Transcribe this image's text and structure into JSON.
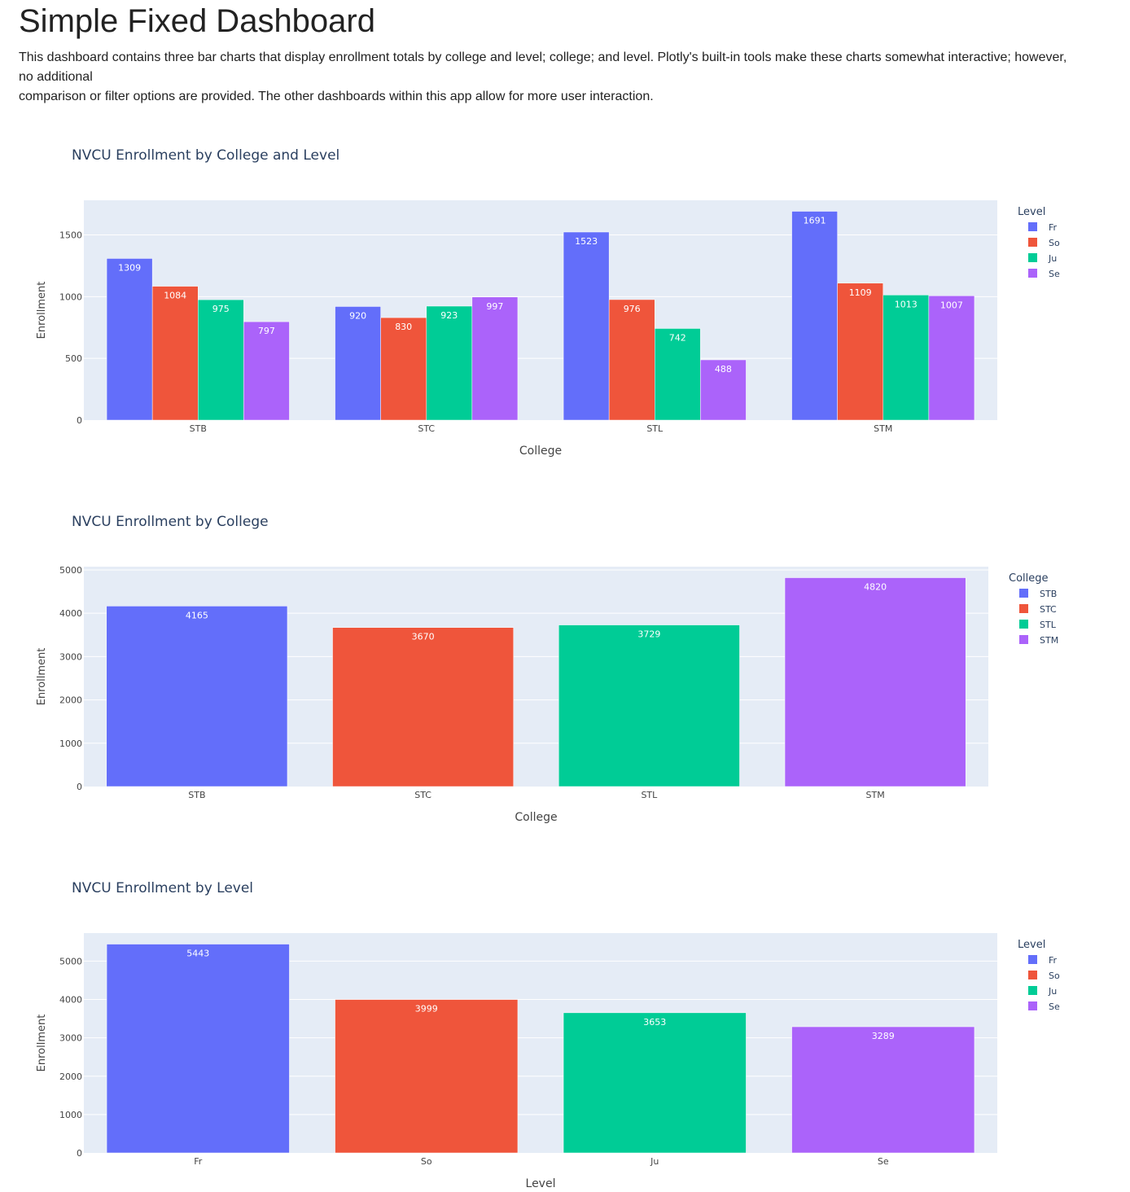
{
  "page": {
    "title": "Simple Fixed Dashboard",
    "description_lines": [
      "This dashboard contains three bar charts that display enrollment totals by college and level; college; and level. Plotly's built-in tools make these charts somewhat interactive; however, no additional",
      "comparison or filter options are provided. The other dashboards within this app allow for more user interaction."
    ]
  },
  "colors": {
    "plot_bg": "#E5ECF6",
    "grid": "#ffffff",
    "text": "#2a3f5f",
    "axis_text": "#444444",
    "palette": [
      "#636EFA",
      "#EF553B",
      "#00CC96",
      "#AB63FA"
    ]
  },
  "chart_data": [
    {
      "type": "bar",
      "barmode": "group",
      "title": "NVCU Enrollment by College and Level",
      "xlabel": "College",
      "ylabel": "Enrollment",
      "ylim": [
        0,
        1780
      ],
      "yticks": [
        0,
        500,
        1000,
        1500
      ],
      "categories": [
        "STB",
        "STC",
        "STL",
        "STM"
      ],
      "legend_title": "Level",
      "series": [
        {
          "name": "Fr",
          "values": [
            1309,
            920,
            1523,
            1691
          ]
        },
        {
          "name": "So",
          "values": [
            1084,
            830,
            976,
            1109
          ]
        },
        {
          "name": "Ju",
          "values": [
            975,
            923,
            742,
            1013
          ]
        },
        {
          "name": "Se",
          "values": [
            797,
            997,
            488,
            1007
          ]
        }
      ]
    },
    {
      "type": "bar",
      "barmode": "color",
      "title": "NVCU Enrollment by College",
      "xlabel": "College",
      "ylabel": "Enrollment",
      "ylim": [
        0,
        5074
      ],
      "yticks": [
        0,
        1000,
        2000,
        3000,
        4000,
        5000
      ],
      "categories": [
        "STB",
        "STC",
        "STL",
        "STM"
      ],
      "legend_title": "College",
      "values": [
        4165,
        3670,
        3729,
        4820
      ]
    },
    {
      "type": "bar",
      "barmode": "color",
      "title": "NVCU Enrollment by Level",
      "xlabel": "Level",
      "ylabel": "Enrollment",
      "ylim": [
        0,
        5730
      ],
      "yticks": [
        0,
        1000,
        2000,
        3000,
        4000,
        5000
      ],
      "categories": [
        "Fr",
        "So",
        "Ju",
        "Se"
      ],
      "legend_title": "Level",
      "values": [
        5443,
        3999,
        3653,
        3289
      ]
    }
  ]
}
